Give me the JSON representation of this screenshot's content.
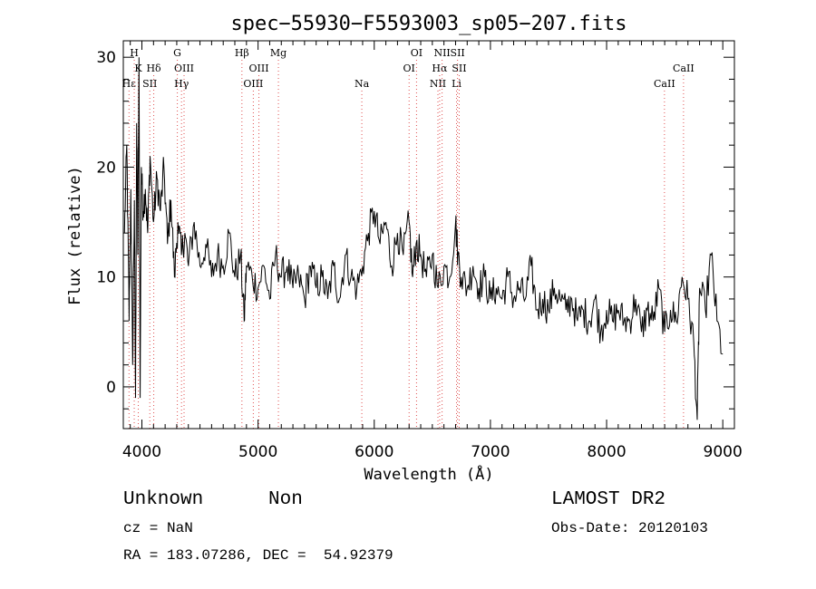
{
  "chart_data": {
    "type": "line",
    "title": "spec−55930−F5593003_sp05−207.fits",
    "xlabel": "Wavelength (Å)",
    "ylabel": "Flux (relative)",
    "xlim": [
      3840,
      9100
    ],
    "ylim": [
      -3.8,
      31.5
    ],
    "x_ticks": [
      4000,
      5000,
      6000,
      7000,
      8000,
      9000
    ],
    "y_ticks": [
      0,
      10,
      20,
      30
    ],
    "grid": false,
    "series": [
      {
        "x": [
          3850,
          3870,
          3890,
          3905,
          3920,
          3935,
          3945,
          3955,
          3965,
          3975,
          3985,
          3995,
          4010,
          4030,
          4050,
          4070,
          4100,
          4130,
          4160,
          4190,
          4220,
          4250,
          4280,
          4310,
          4340,
          4370,
          4400,
          4450,
          4500,
          4550,
          4600,
          4650,
          4700,
          4750,
          4800,
          4850,
          4880,
          4900,
          4950,
          5000,
          5050,
          5100,
          5150,
          5200,
          5250,
          5300,
          5350,
          5400,
          5450,
          5500,
          5550,
          5600,
          5650,
          5700,
          5750,
          5800,
          5850,
          5900,
          5950,
          6000,
          6050,
          6100,
          6150,
          6200,
          6250,
          6300,
          6330,
          6360,
          6400,
          6450,
          6500,
          6550,
          6600,
          6650,
          6700,
          6720,
          6750,
          6800,
          6850,
          6900,
          6950,
          7000,
          7050,
          7100,
          7150,
          7200,
          7250,
          7300,
          7350,
          7400,
          7450,
          7500,
          7550,
          7600,
          7650,
          7700,
          7750,
          7800,
          7850,
          7900,
          7950,
          8000,
          8050,
          8100,
          8150,
          8200,
          8250,
          8300,
          8350,
          8400,
          8450,
          8500,
          8550,
          8600,
          8650,
          8700,
          8750,
          8780,
          8800,
          8850,
          8900,
          8950,
          9000
        ],
        "y": [
          14,
          22,
          6,
          18,
          2,
          17,
          -1,
          24,
          12,
          30,
          -1,
          20,
          16,
          18,
          14,
          21,
          15,
          19,
          16,
          20,
          13,
          17,
          10,
          15,
          12,
          14,
          11,
          15,
          11,
          13,
          10,
          12,
          11,
          14,
          10,
          12,
          6,
          11,
          10,
          9,
          11,
          8,
          12,
          10,
          11,
          9,
          10,
          8,
          11,
          9,
          10,
          8,
          11,
          8,
          12,
          10,
          9,
          11,
          14,
          16,
          13,
          15,
          11,
          14,
          12,
          15,
          10,
          13,
          12,
          10,
          12,
          9,
          11,
          10,
          15,
          12,
          10,
          9,
          11,
          9,
          10,
          8,
          9,
          8,
          10,
          8,
          9,
          8,
          11,
          7,
          8,
          7,
          9,
          8,
          7,
          8,
          6,
          7,
          6,
          8,
          5,
          7,
          6,
          7,
          6,
          6,
          8,
          5,
          7,
          6,
          9,
          5,
          7,
          6,
          10,
          8,
          4,
          -3,
          9,
          7,
          12,
          6,
          3
        ]
      }
    ],
    "lines": [
      {
        "label": "H",
        "x": 3934,
        "row": 0
      },
      {
        "label": "K",
        "x": 3969,
        "row": 1
      },
      {
        "label": "Hδ",
        "x": 4102,
        "row": 1
      },
      {
        "label": "Hε",
        "x": 3889,
        "row": 2
      },
      {
        "label": "SII",
        "x": 4068,
        "row": 2
      },
      {
        "label": "G",
        "x": 4305,
        "row": 0
      },
      {
        "label": "OIII",
        "x": 4363,
        "row": 1
      },
      {
        "label": "Hγ",
        "x": 4341,
        "row": 2
      },
      {
        "label": "Hβ",
        "x": 4861,
        "row": 0
      },
      {
        "label": "OIII",
        "x": 5007,
        "row": 1
      },
      {
        "label": "OIII",
        "x": 4959,
        "row": 2
      },
      {
        "label": "Mg",
        "x": 5175,
        "row": 0
      },
      {
        "label": "Na",
        "x": 5893,
        "row": 2
      },
      {
        "label": "OI",
        "x": 6364,
        "row": 0
      },
      {
        "label": "OI",
        "x": 6300,
        "row": 1
      },
      {
        "label": "NII",
        "x": 6584,
        "row": 0
      },
      {
        "label": "SII",
        "x": 6717,
        "row": 0
      },
      {
        "label": "Hα",
        "x": 6563,
        "row": 1
      },
      {
        "label": "SII",
        "x": 6731,
        "row": 1
      },
      {
        "label": "NII",
        "x": 6548,
        "row": 2
      },
      {
        "label": "Li",
        "x": 6708,
        "row": 2
      },
      {
        "label": "CaII",
        "x": 8662,
        "row": 1
      },
      {
        "label": "CaII",
        "x": 8498,
        "row": 2
      }
    ]
  },
  "footer": {
    "class_text": "Unknown",
    "subclass_text": "Non",
    "cz_text": "cz = NaN",
    "radec_text": "RA = 183.07286, DEC =  54.92379",
    "survey_text": "LAMOST DR2",
    "obsdate_text": "Obs-Date: 20120103"
  }
}
